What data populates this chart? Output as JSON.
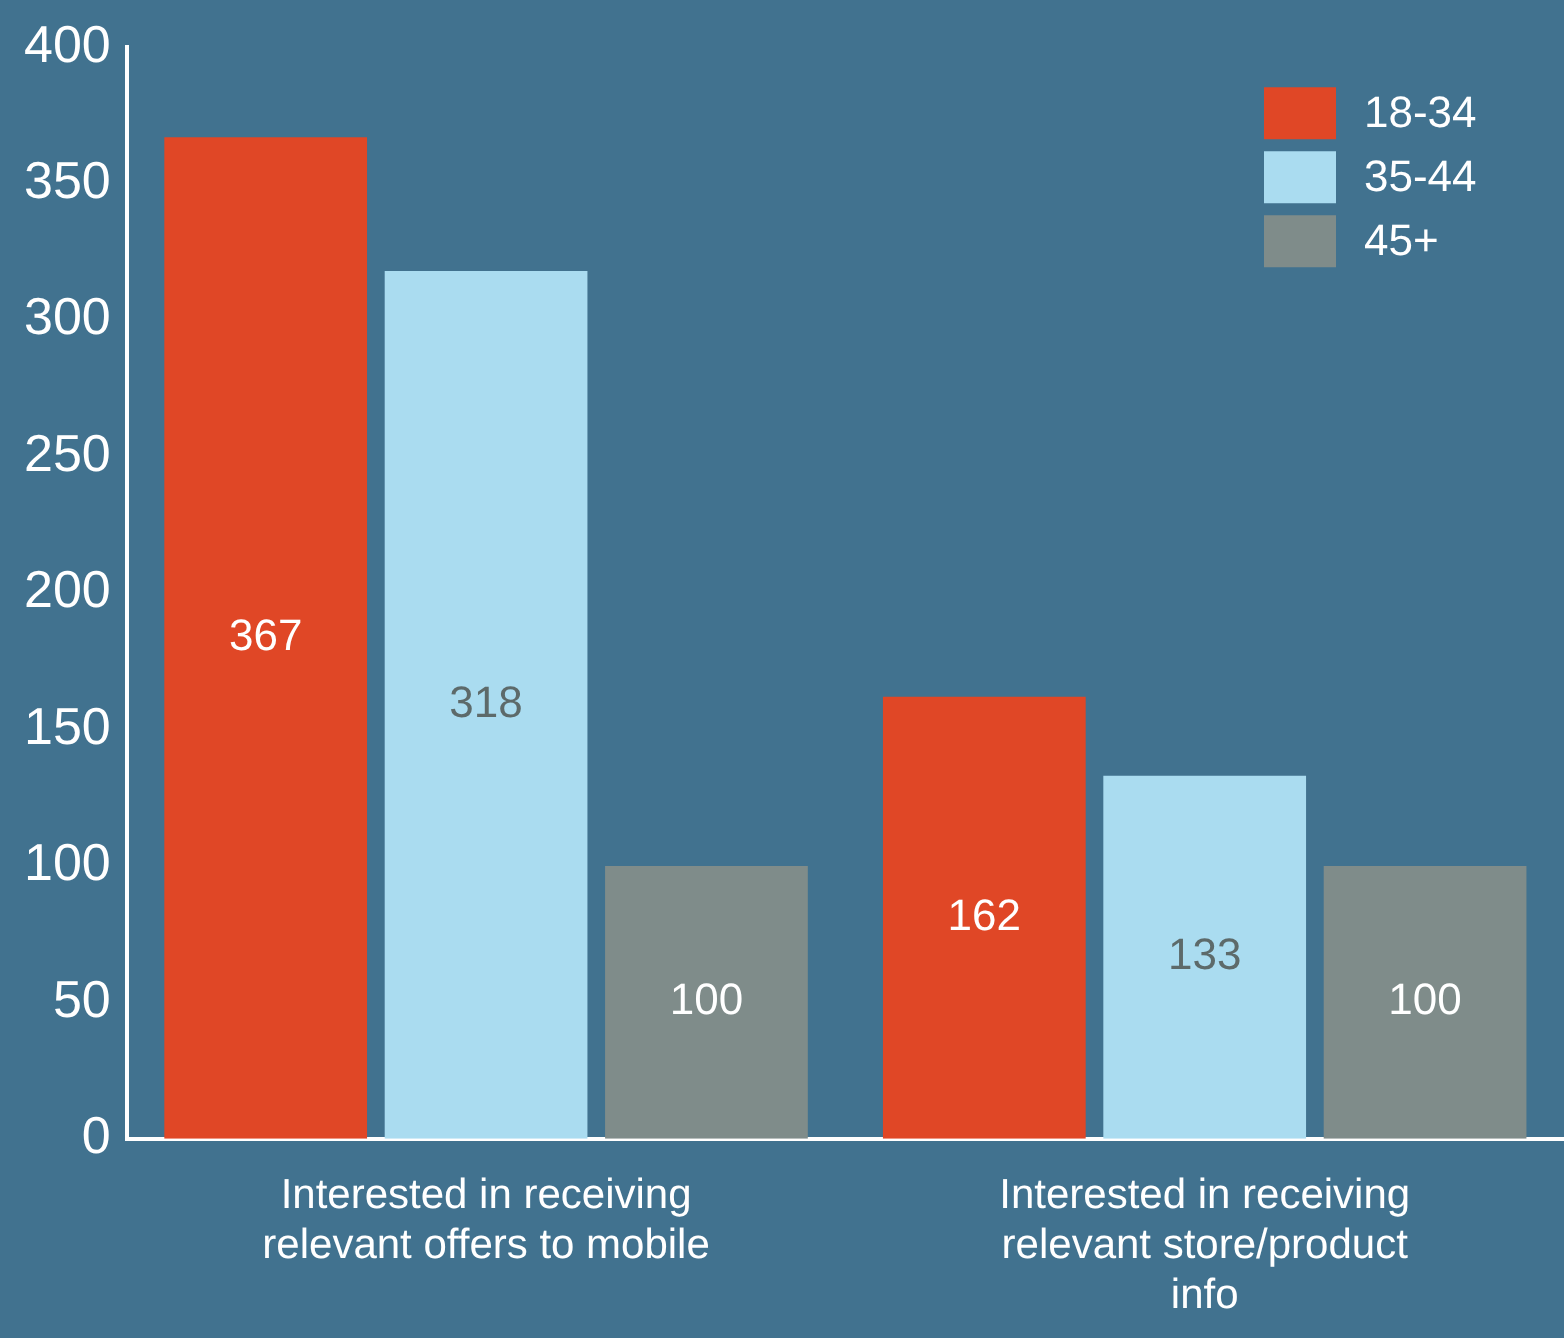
{
  "chart_data": {
    "type": "bar",
    "categories": [
      "Interested in receiving relevant offers to mobile",
      "Interested in receiving relevant store/product info"
    ],
    "series": [
      {
        "name": "18-34",
        "color": "#e04726",
        "values": [
          367,
          162
        ]
      },
      {
        "name": "35-44",
        "color": "#aadcf0",
        "values": [
          318,
          133
        ]
      },
      {
        "name": "45+",
        "color": "#7f8c8a",
        "values": [
          100,
          100
        ]
      }
    ],
    "ylim": [
      0,
      400
    ],
    "yticks": [
      0,
      50,
      100,
      150,
      200,
      250,
      300,
      350,
      400
    ],
    "data_labels": true,
    "legend": "top right",
    "grid": false
  }
}
